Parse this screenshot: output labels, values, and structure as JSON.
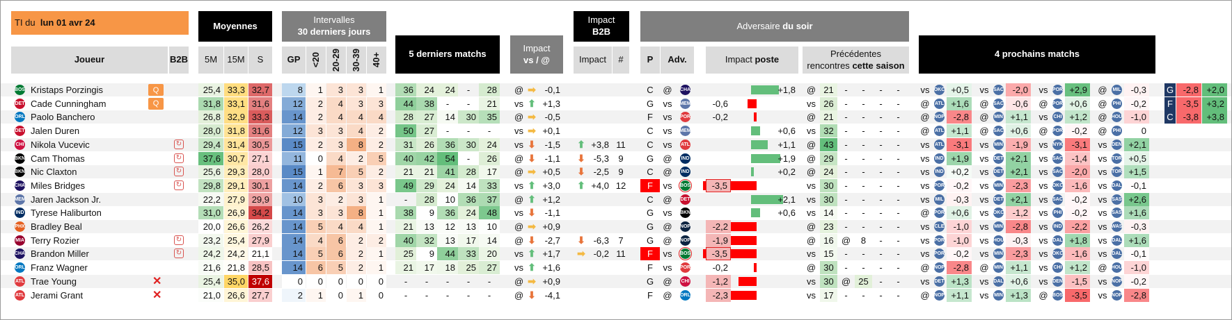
{
  "title": {
    "prefix": "TI du",
    "date": "lun 01 avr 24"
  },
  "headers": {
    "moyennes": "Moyennes",
    "intervalles_1": "Intervalles",
    "intervalles_2": "30 derniers jours",
    "derniers5": "5 derniers matchs",
    "impact_vs_1": "Impact",
    "impact_vs_2": "vs / @",
    "impact_b2b_1": "Impact",
    "impact_b2b_2": "B2B",
    "adversaire_1": "Adversaire",
    "adversaire_2": "du soir",
    "prochains": "4 prochains matchs",
    "joueur": "Joueur",
    "b2b": "B2B",
    "m5": "5M",
    "m15": "15M",
    "s": "S",
    "gp": "GP",
    "lt20": "<20",
    "r2029": "20-29",
    "r3039": "30-39",
    "p40": "40+",
    "impact": "Impact",
    "hash": "#",
    "p": "P",
    "adv": "Adv.",
    "impact_poste_1": "Impact ",
    "impact_poste_2": "poste",
    "prec_1": "Précédentes",
    "prec_2": "rencontres ",
    "prec_3": "cette saison"
  },
  "colors": {
    "orange": "#f79646",
    "black": "#000000",
    "grey": "#7f7f7f",
    "light": "#dcdcdc",
    "green": "#63be7b",
    "red": "#f8696b",
    "yellow": "#ffd666",
    "blue": "#5a8ac6"
  },
  "players": [
    {
      "team": "BOS",
      "tc": "#007a33",
      "name": "Kristaps Porzingis",
      "q": "Q",
      "b2b": "",
      "m5": "25,4",
      "m15": "33,3",
      "s": "32,7",
      "gp": "8",
      "i1": "1",
      "i2": "3",
      "i3": "3",
      "i4": "1",
      "g": [
        "36",
        "24",
        "24",
        "-",
        "28"
      ],
      "ivs": "@",
      "iva": "right",
      "ivv": "-0,1",
      "b2ba": "",
      "b2bv": "",
      "b2bn": "",
      "p": "C",
      "loc": "@",
      "adv": "CHA",
      "ac": "#1d1160",
      "ip": "+1,8",
      "ipv": 1.8,
      "pr": [
        "@",
        "21",
        "-",
        "-",
        "-",
        "-"
      ],
      "nx": [
        [
          "vs",
          "OKC",
          "+0,5"
        ],
        [
          "vs",
          "SAC",
          "-2,0"
        ],
        [
          "vs",
          "POR",
          "+2,9"
        ],
        [
          "@",
          "MIL",
          "-0,3"
        ]
      ],
      "ex": [
        "G",
        "-2,8",
        "+2,0"
      ]
    },
    {
      "team": "DET",
      "tc": "#c8102e",
      "name": "Cade Cunningham",
      "q": "Q",
      "b2b": "",
      "m5": "31,8",
      "m15": "33,1",
      "s": "31,6",
      "gp": "12",
      "i1": "2",
      "i2": "4",
      "i3": "3",
      "i4": "3",
      "g": [
        "44",
        "38",
        "-",
        "-",
        "21"
      ],
      "ivs": "vs",
      "iva": "up",
      "ivv": "+1,3",
      "b2ba": "",
      "b2bv": "",
      "b2bn": "",
      "p": "G",
      "loc": "vs",
      "adv": "MEM",
      "ac": "#5d76a9",
      "ip": "-0,6",
      "ipv": -0.6,
      "pr": [
        "vs",
        "26",
        "-",
        "-",
        "-",
        "-"
      ],
      "nx": [
        [
          "@",
          "ATL",
          "+1,6"
        ],
        [
          "@",
          "SAC",
          "-0,6"
        ],
        [
          "@",
          "POR",
          "+0,6"
        ],
        [
          "@",
          "PHI",
          "-0,2"
        ]
      ],
      "ex": [
        "F",
        "-3,5",
        "+3,2"
      ]
    },
    {
      "team": "ORL",
      "tc": "#0077c0",
      "name": "Paolo Banchero",
      "q": "",
      "b2b": "",
      "m5": "26,8",
      "m15": "32,9",
      "s": "33,3",
      "gp": "14",
      "i1": "2",
      "i2": "4",
      "i3": "4",
      "i4": "4",
      "g": [
        "28",
        "27",
        "14",
        "30",
        "35"
      ],
      "ivs": "@",
      "iva": "right",
      "ivv": "-0,5",
      "b2ba": "",
      "b2bv": "",
      "b2bn": "",
      "p": "F",
      "loc": "vs",
      "adv": "POR",
      "ac": "#e03a3e",
      "ip": "-0,2",
      "ipv": -0.2,
      "pr": [
        "@",
        "21",
        "-",
        "-",
        "-",
        "-"
      ],
      "nx": [
        [
          "@",
          "NOP",
          "-2,8"
        ],
        [
          "@",
          "MIN",
          "+1,1"
        ],
        [
          "vs",
          "CHI",
          "+1,2"
        ],
        [
          "@",
          "HOU",
          "-1,0"
        ]
      ],
      "ex": [
        "C",
        "-3,8",
        "+3,8"
      ]
    },
    {
      "team": "DET",
      "tc": "#c8102e",
      "name": "Jalen Duren",
      "q": "",
      "b2b": "",
      "m5": "28,0",
      "m15": "31,8",
      "s": "31,6",
      "gp": "12",
      "i1": "3",
      "i2": "3",
      "i3": "4",
      "i4": "2",
      "g": [
        "50",
        "27",
        "-",
        "-",
        "-"
      ],
      "ivs": "vs",
      "iva": "right",
      "ivv": "+0,1",
      "b2ba": "",
      "b2bv": "",
      "b2bn": "",
      "p": "C",
      "loc": "vs",
      "adv": "MEM",
      "ac": "#5d76a9",
      "ip": "+0,6",
      "ipv": 0.6,
      "pr": [
        "vs",
        "32",
        "-",
        "-",
        "-",
        "-"
      ],
      "nx": [
        [
          "@",
          "ATL",
          "+1,1"
        ],
        [
          "@",
          "SAC",
          "+0,6"
        ],
        [
          "@",
          "POR",
          "-0,2"
        ],
        [
          "@",
          "PHI",
          "0"
        ]
      ],
      "ex": null
    },
    {
      "team": "CHI",
      "tc": "#ce1141",
      "name": "Nikola Vucevic",
      "q": "",
      "b2b": "↻",
      "m5": "29,4",
      "m15": "31,4",
      "s": "30,5",
      "gp": "15",
      "i1": "2",
      "i2": "3",
      "i3": "8",
      "i4": "2",
      "g": [
        "31",
        "26",
        "36",
        "30",
        "24"
      ],
      "ivs": "vs",
      "iva": "down",
      "ivv": "-1,5",
      "b2ba": "up",
      "b2bv": "+3,8",
      "b2bn": "11",
      "p": "C",
      "loc": "vs",
      "adv": "ATL",
      "ac": "#e03a3e",
      "ip": "+1,1",
      "ipv": 1.1,
      "pr": [
        "@",
        "43",
        "-",
        "-",
        "-",
        "-"
      ],
      "nx": [
        [
          "vs",
          "ATL",
          "-3,1"
        ],
        [
          "vs",
          "MIN",
          "-1,9"
        ],
        [
          "vs",
          "NYK",
          "-3,1"
        ],
        [
          "vs",
          "DEN",
          "+2,1"
        ]
      ],
      "ex": null
    },
    {
      "team": "BKN",
      "tc": "#000000",
      "name": "Cam Thomas",
      "q": "",
      "b2b": "↻",
      "m5": "37,6",
      "m15": "30,7",
      "s": "27,1",
      "gp": "11",
      "i1": "0",
      "i2": "4",
      "i3": "2",
      "i4": "5",
      "g": [
        "40",
        "42",
        "54",
        "-",
        "26"
      ],
      "ivs": "@",
      "iva": "down",
      "ivv": "-1,1",
      "b2ba": "down",
      "b2bv": "-5,3",
      "b2bn": "9",
      "p": "G",
      "loc": "@",
      "adv": "IND",
      "ac": "#002d62",
      "ip": "+1,9",
      "ipv": 1.9,
      "pr": [
        "@",
        "29",
        "-",
        "-",
        "-",
        "-"
      ],
      "nx": [
        [
          "vs",
          "IND",
          "+1,9"
        ],
        [
          "vs",
          "DET",
          "+2,1"
        ],
        [
          "vs",
          "SAC",
          "-1,4"
        ],
        [
          "vs",
          "TOR",
          "+0,5"
        ]
      ],
      "ex": null
    },
    {
      "team": "BKN",
      "tc": "#000000",
      "name": "Nic Claxton",
      "q": "",
      "b2b": "↻",
      "m5": "25,6",
      "m15": "29,3",
      "s": "28,0",
      "gp": "15",
      "i1": "1",
      "i2": "7",
      "i3": "5",
      "i4": "2",
      "g": [
        "21",
        "21",
        "41",
        "28",
        "17"
      ],
      "ivs": "@",
      "iva": "right",
      "ivv": "+0,5",
      "b2ba": "down",
      "b2bv": "-2,5",
      "b2bn": "9",
      "p": "C",
      "loc": "@",
      "adv": "IND",
      "ac": "#002d62",
      "ip": "+0,2",
      "ipv": 0.2,
      "pr": [
        "@",
        "24",
        "-",
        "-",
        "-",
        "-"
      ],
      "nx": [
        [
          "vs",
          "IND",
          "+0,2"
        ],
        [
          "vs",
          "DET",
          "+2,1"
        ],
        [
          "vs",
          "SAC",
          "-2,0"
        ],
        [
          "vs",
          "TOR",
          "+1,5"
        ]
      ],
      "ex": null
    },
    {
      "team": "CHA",
      "tc": "#1d1160",
      "name": "Miles Bridges",
      "q": "",
      "b2b": "↻",
      "m5": "29,8",
      "m15": "29,1",
      "s": "30,1",
      "gp": "14",
      "i1": "2",
      "i2": "6",
      "i3": "3",
      "i4": "3",
      "g": [
        "49",
        "29",
        "24",
        "14",
        "33"
      ],
      "ivs": "vs",
      "iva": "up",
      "ivv": "+3,0",
      "b2ba": "up",
      "b2bv": "+4,0",
      "b2bn": "12",
      "p": "F",
      "loc": "vs",
      "adv": "BOS",
      "ac": "#007a33",
      "ip": "-3,5",
      "ipv": -3.5,
      "pr": [
        "vs",
        "30",
        "-",
        "-",
        "-",
        "-"
      ],
      "nx": [
        [
          "vs",
          "POR",
          "-0,2"
        ],
        [
          "vs",
          "MIN",
          "-2,3"
        ],
        [
          "vs",
          "OKC",
          "-1,6"
        ],
        [
          "vs",
          "DAL",
          "-0,1"
        ]
      ],
      "ex": null
    },
    {
      "team": "MEM",
      "tc": "#5d76a9",
      "name": "Jaren Jackson Jr.",
      "q": "",
      "b2b": "",
      "m5": "22,2",
      "m15": "27,9",
      "s": "29,9",
      "gp": "10",
      "i1": "3",
      "i2": "2",
      "i3": "3",
      "i4": "1",
      "g": [
        "-",
        "28",
        "10",
        "36",
        "37"
      ],
      "ivs": "@",
      "iva": "up",
      "ivv": "+1,2",
      "b2ba": "",
      "b2bv": "",
      "b2bn": "",
      "p": "C",
      "loc": "@",
      "adv": "DET",
      "ac": "#c8102e",
      "ip": "+2,1",
      "ipv": 2.1,
      "pr": [
        "vs",
        "30",
        "-",
        "-",
        "-",
        "-"
      ],
      "nx": [
        [
          "vs",
          "MIL",
          "-0,3"
        ],
        [
          "vs",
          "DET",
          "+2,1"
        ],
        [
          "vs",
          "SAC",
          "-0,2"
        ],
        [
          "vs",
          "SAS",
          "+2,6"
        ]
      ],
      "ex": null
    },
    {
      "team": "IND",
      "tc": "#002d62",
      "name": "Tyrese Haliburton",
      "q": "",
      "b2b": "",
      "m5": "31,0",
      "m15": "26,9",
      "s": "34,2",
      "gp": "14",
      "i1": "3",
      "i2": "3",
      "i3": "8",
      "i4": "1",
      "g": [
        "38",
        "9",
        "36",
        "24",
        "48"
      ],
      "ivs": "vs",
      "iva": "down",
      "ivv": "-1,1",
      "b2ba": "",
      "b2bv": "",
      "b2bn": "",
      "p": "G",
      "loc": "vs",
      "adv": "BKN",
      "ac": "#000000",
      "ip": "+0,6",
      "ipv": 0.6,
      "pr": [
        "vs",
        "14",
        "-",
        "-",
        "-",
        "-"
      ],
      "nx": [
        [
          "@",
          "POR",
          "+0,6"
        ],
        [
          "vs",
          "OKC",
          "-1,2"
        ],
        [
          "vs",
          "PHI",
          "-0,2"
        ],
        [
          "vs",
          "SAS",
          "+1,6"
        ]
      ],
      "ex": null
    },
    {
      "team": "PHX",
      "tc": "#e56020",
      "name": "Bradley Beal",
      "q": "",
      "b2b": "",
      "m5": "20,0",
      "m15": "26,6",
      "s": "26,2",
      "gp": "14",
      "i1": "5",
      "i2": "4",
      "i3": "4",
      "i4": "1",
      "g": [
        "21",
        "13",
        "12",
        "13",
        "10"
      ],
      "ivs": "@",
      "iva": "right",
      "ivv": "+0,9",
      "b2ba": "",
      "b2bv": "",
      "b2bn": "",
      "p": "G",
      "loc": "@",
      "adv": "NOP",
      "ac": "#0c2340",
      "ip": "-2,2",
      "ipv": -2.2,
      "pr": [
        "@",
        "23",
        "-",
        "-",
        "-",
        "-"
      ],
      "nx": [
        [
          "vs",
          "CLE",
          "-1,0"
        ],
        [
          "vs",
          "MIN",
          "-2,8"
        ],
        [
          "vs",
          "IND",
          "-2,2"
        ],
        [
          "vs",
          "WAS",
          "-0,3"
        ]
      ],
      "ex": null
    },
    {
      "team": "MIA",
      "tc": "#98002e",
      "name": "Terry Rozier",
      "q": "",
      "b2b": "↻",
      "m5": "23,2",
      "m15": "25,4",
      "s": "27,9",
      "gp": "14",
      "i1": "4",
      "i2": "6",
      "i3": "2",
      "i4": "2",
      "g": [
        "40",
        "32",
        "13",
        "17",
        "14"
      ],
      "ivs": "@",
      "iva": "down",
      "ivv": "-2,7",
      "b2ba": "down",
      "b2bv": "-6,3",
      "b2bn": "7",
      "p": "G",
      "loc": "@",
      "adv": "NOP",
      "ac": "#0c2340",
      "ip": "-1,9",
      "ipv": -1.9,
      "pr": [
        "@",
        "16",
        "@",
        "8",
        "-",
        "-"
      ],
      "nx": [
        [
          "vs",
          "POR",
          "-1,0"
        ],
        [
          "vs",
          "HOU",
          "-0,3"
        ],
        [
          "vs",
          "DAL",
          "+1,8"
        ],
        [
          "vs",
          "DAL",
          "+1,6"
        ]
      ],
      "ex": null
    },
    {
      "team": "CHA",
      "tc": "#1d1160",
      "name": "Brandon Miller",
      "q": "",
      "b2b": "↻",
      "m5": "24,2",
      "m15": "24,2",
      "s": "21,1",
      "gp": "14",
      "i1": "5",
      "i2": "6",
      "i3": "2",
      "i4": "1",
      "g": [
        "25",
        "9",
        "44",
        "33",
        "20"
      ],
      "ivs": "vs",
      "iva": "up",
      "ivv": "+1,7",
      "b2ba": "right",
      "b2bv": "-0,2",
      "b2bn": "11",
      "p": "F",
      "loc": "vs",
      "adv": "BOS",
      "ac": "#007a33",
      "ip": "-3,5",
      "ipv": -3.5,
      "pr": [
        "vs",
        "15",
        "-",
        "-",
        "-",
        "-"
      ],
      "nx": [
        [
          "vs",
          "POR",
          "-0,2"
        ],
        [
          "vs",
          "MIN",
          "-2,3"
        ],
        [
          "vs",
          "OKC",
          "-1,6"
        ],
        [
          "vs",
          "DAL",
          "-0,1"
        ]
      ],
      "ex": null
    },
    {
      "team": "ORL",
      "tc": "#0077c0",
      "name": "Franz Wagner",
      "q": "",
      "b2b": "",
      "m5": "21,6",
      "m15": "21,8",
      "s": "28,5",
      "gp": "14",
      "i1": "6",
      "i2": "5",
      "i3": "2",
      "i4": "1",
      "g": [
        "21",
        "17",
        "18",
        "25",
        "27"
      ],
      "ivs": "vs",
      "iva": "up",
      "ivv": "+1,6",
      "b2ba": "",
      "b2bv": "",
      "b2bn": "",
      "p": "F",
      "loc": "vs",
      "adv": "POR",
      "ac": "#e03a3e",
      "ip": "-0,2",
      "ipv": -0.2,
      "pr": [
        "@",
        "30",
        "-",
        "-",
        "-",
        "-"
      ],
      "nx": [
        [
          "@",
          "NOP",
          "-2,8"
        ],
        [
          "@",
          "MIN",
          "+1,1"
        ],
        [
          "vs",
          "CHI",
          "+1,2"
        ],
        [
          "@",
          "HOU",
          "-1,0"
        ]
      ],
      "ex": null
    },
    {
      "team": "ATL",
      "tc": "#e03a3e",
      "name": "Trae Young",
      "q": "",
      "b2b": "✕",
      "m5": "25,4",
      "m15": "35,0",
      "s": "37,6",
      "gp": "0",
      "i1": "0",
      "i2": "0",
      "i3": "0",
      "i4": "0",
      "g": [
        "-",
        "-",
        "-",
        "-",
        "-"
      ],
      "ivs": "@",
      "iva": "right",
      "ivv": "+0,9",
      "b2ba": "",
      "b2bv": "",
      "b2bn": "",
      "p": "G",
      "loc": "@",
      "adv": "CHI",
      "ac": "#ce1141",
      "ip": "-1,2",
      "ipv": -1.2,
      "pr": [
        "vs",
        "30",
        "@",
        "25",
        "-",
        "-"
      ],
      "nx": [
        [
          "vs",
          "DET",
          "+1,3"
        ],
        [
          "vs",
          "DAL",
          "+0,6"
        ],
        [
          "vs",
          "DEN",
          "-1,5"
        ],
        [
          "vs",
          "NOP",
          "-0,2"
        ]
      ],
      "ex": null
    },
    {
      "team": "ATL",
      "tc": "#e03a3e",
      "name": "Jerami Grant",
      "q": "",
      "b2b": "✕",
      "m5": "21,0",
      "m15": "26,6",
      "s": "27,7",
      "gp": "2",
      "i1": "1",
      "i2": "0",
      "i3": "1",
      "i4": "0",
      "g": [
        "-",
        "-",
        "-",
        "-",
        "-"
      ],
      "ivs": "@",
      "iva": "down",
      "ivv": "-4,1",
      "b2ba": "",
      "b2bv": "",
      "b2bn": "",
      "p": "F",
      "loc": "@",
      "adv": "ORL",
      "ac": "#0077c0",
      "ip": "-2,3",
      "ipv": -2.3,
      "pr": [
        "vs",
        "17",
        "-",
        "-",
        "-",
        "-"
      ],
      "nx": [
        [
          "@",
          "NOP",
          "+1,1"
        ],
        [
          "vs",
          "MIN",
          "+1,3"
        ],
        [
          "@",
          "BOS",
          "-3,5"
        ],
        [
          "vs",
          "NOP",
          "-2,8"
        ]
      ],
      "ex": null
    }
  ]
}
